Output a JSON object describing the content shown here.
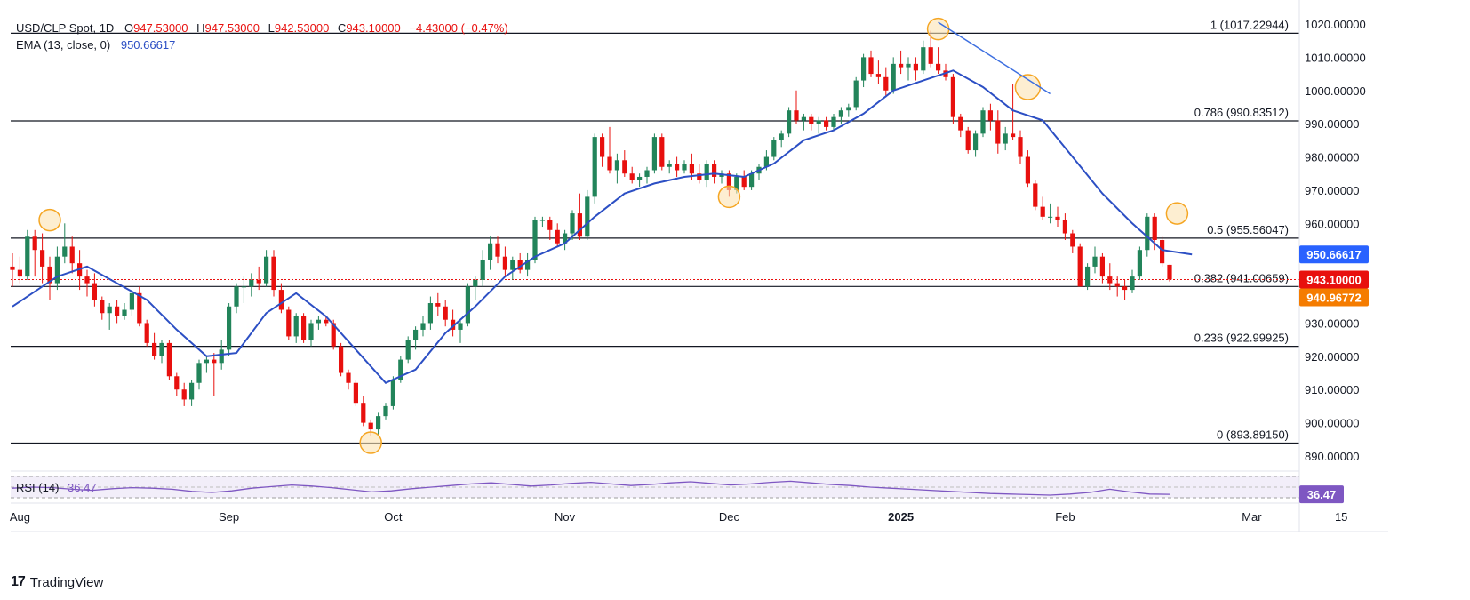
{
  "legend": {
    "symbol_line": "USD/CLP Spot, 1D",
    "o_label": "O",
    "o_value": "947.53000",
    "h_label": "H",
    "h_value": "947.53000",
    "l_label": "L",
    "l_value": "942.53000",
    "c_label": "C",
    "c_value": "943.10000",
    "change": "−4.43000 (−0.47%)",
    "ema_label": "EMA (13, close, 0)",
    "ema_value": "950.66617",
    "rsi_label": "RSI (14)",
    "rsi_value": "36.47"
  },
  "colors": {
    "up": "#22845a",
    "down": "#e8100e",
    "ema": "#2c4fc4",
    "rsi": "#7e57c2",
    "fib_line": "#131722",
    "trend": "#3d6fe0",
    "circle": "#f5a623",
    "tag_ema": "#2962ff",
    "tag_price": "#e8100e",
    "tag_fib": "#f57c00"
  },
  "brand": "TradingView",
  "chart_data": {
    "type": "candlestick",
    "title": "USD/CLP Spot, 1D",
    "ylim": [
      885,
      1025
    ],
    "y_ticks": [
      "1020.00000",
      "1010.00000",
      "1000.00000",
      "990.00000",
      "980.00000",
      "970.00000",
      "960.00000",
      "950.00000",
      "940.00000",
      "930.00000",
      "920.00000",
      "910.00000",
      "900.00000",
      "890.00000"
    ],
    "x_ticks": [
      "Aug",
      "Sep",
      "Oct",
      "Nov",
      "Dec",
      "2025",
      "Feb",
      "Mar",
      "15"
    ],
    "fib_levels": [
      {
        "label": "1 (1017.22944)",
        "value": 1017.22944
      },
      {
        "label": "0.786 (990.83512)",
        "value": 990.83512
      },
      {
        "label": "0.5 (955.56047)",
        "value": 955.56047
      },
      {
        "label": "0.382 (941.00659)",
        "value": 941.00659
      },
      {
        "label": "0.236 (922.99925)",
        "value": 922.99925
      },
      {
        "label": "0 (893.89150)",
        "value": 893.8915
      }
    ],
    "price_tags": [
      {
        "label": "950.66617",
        "value": 950.66617,
        "kind": "ema"
      },
      {
        "label": "943.10000",
        "value": 943.1,
        "kind": "price"
      },
      {
        "label": "940.96772",
        "value": 940.96772,
        "kind": "fib"
      }
    ],
    "rsi_tag": "36.47",
    "candles": [
      {
        "o": 947,
        "h": 951,
        "l": 941,
        "c": 946
      },
      {
        "o": 946,
        "h": 950,
        "l": 942,
        "c": 944
      },
      {
        "o": 944,
        "h": 958,
        "l": 943,
        "c": 956
      },
      {
        "o": 956,
        "h": 958,
        "l": 944,
        "c": 952
      },
      {
        "o": 952,
        "h": 957,
        "l": 942,
        "c": 947
      },
      {
        "o": 947,
        "h": 950,
        "l": 937,
        "c": 942
      },
      {
        "o": 942,
        "h": 953,
        "l": 940,
        "c": 950
      },
      {
        "o": 950,
        "h": 960,
        "l": 948,
        "c": 953
      },
      {
        "o": 953,
        "h": 956,
        "l": 945,
        "c": 948
      },
      {
        "o": 948,
        "h": 952,
        "l": 940,
        "c": 944
      },
      {
        "o": 944,
        "h": 946,
        "l": 938,
        "c": 942
      },
      {
        "o": 942,
        "h": 945,
        "l": 935,
        "c": 937
      },
      {
        "o": 937,
        "h": 938,
        "l": 931,
        "c": 933
      },
      {
        "o": 933,
        "h": 936,
        "l": 928,
        "c": 935
      },
      {
        "o": 935,
        "h": 937,
        "l": 930,
        "c": 932
      },
      {
        "o": 932,
        "h": 936,
        "l": 931,
        "c": 934
      },
      {
        "o": 934,
        "h": 940,
        "l": 932,
        "c": 939
      },
      {
        "o": 939,
        "h": 941,
        "l": 929,
        "c": 930
      },
      {
        "o": 930,
        "h": 931,
        "l": 923,
        "c": 924
      },
      {
        "o": 924,
        "h": 927,
        "l": 919,
        "c": 920
      },
      {
        "o": 920,
        "h": 925,
        "l": 918,
        "c": 924
      },
      {
        "o": 924,
        "h": 925,
        "l": 913,
        "c": 914
      },
      {
        "o": 914,
        "h": 915,
        "l": 908,
        "c": 910
      },
      {
        "o": 910,
        "h": 912,
        "l": 905,
        "c": 907
      },
      {
        "o": 907,
        "h": 913,
        "l": 905,
        "c": 912
      },
      {
        "o": 912,
        "h": 919,
        "l": 910,
        "c": 918
      },
      {
        "o": 918,
        "h": 920,
        "l": 915,
        "c": 919
      },
      {
        "o": 919,
        "h": 921,
        "l": 908,
        "c": 918
      },
      {
        "o": 918,
        "h": 925,
        "l": 916,
        "c": 922
      },
      {
        "o": 922,
        "h": 936,
        "l": 920,
        "c": 935
      },
      {
        "o": 935,
        "h": 942,
        "l": 933,
        "c": 941
      },
      {
        "o": 941,
        "h": 944,
        "l": 936,
        "c": 941
      },
      {
        "o": 941,
        "h": 945,
        "l": 938,
        "c": 943
      },
      {
        "o": 943,
        "h": 947,
        "l": 940,
        "c": 942
      },
      {
        "o": 942,
        "h": 952,
        "l": 941,
        "c": 950
      },
      {
        "o": 950,
        "h": 952,
        "l": 938,
        "c": 940
      },
      {
        "o": 940,
        "h": 942,
        "l": 933,
        "c": 934
      },
      {
        "o": 934,
        "h": 935,
        "l": 925,
        "c": 926
      },
      {
        "o": 926,
        "h": 933,
        "l": 924,
        "c": 932
      },
      {
        "o": 932,
        "h": 933,
        "l": 924,
        "c": 925
      },
      {
        "o": 925,
        "h": 931,
        "l": 923,
        "c": 930
      },
      {
        "o": 930,
        "h": 932,
        "l": 928,
        "c": 931
      },
      {
        "o": 931,
        "h": 932,
        "l": 929,
        "c": 930
      },
      {
        "o": 930,
        "h": 931,
        "l": 922,
        "c": 923
      },
      {
        "o": 923,
        "h": 924,
        "l": 914,
        "c": 915
      },
      {
        "o": 915,
        "h": 916,
        "l": 910,
        "c": 912
      },
      {
        "o": 912,
        "h": 913,
        "l": 905,
        "c": 906
      },
      {
        "o": 906,
        "h": 908,
        "l": 899,
        "c": 900
      },
      {
        "o": 900,
        "h": 901,
        "l": 896,
        "c": 898
      },
      {
        "o": 898,
        "h": 903,
        "l": 896,
        "c": 902
      },
      {
        "o": 902,
        "h": 906,
        "l": 901,
        "c": 905
      },
      {
        "o": 905,
        "h": 914,
        "l": 904,
        "c": 913
      },
      {
        "o": 913,
        "h": 920,
        "l": 912,
        "c": 919
      },
      {
        "o": 919,
        "h": 926,
        "l": 918,
        "c": 925
      },
      {
        "o": 925,
        "h": 929,
        "l": 922,
        "c": 928
      },
      {
        "o": 928,
        "h": 932,
        "l": 926,
        "c": 930
      },
      {
        "o": 930,
        "h": 938,
        "l": 928,
        "c": 936
      },
      {
        "o": 936,
        "h": 939,
        "l": 932,
        "c": 935
      },
      {
        "o": 935,
        "h": 937,
        "l": 929,
        "c": 931
      },
      {
        "o": 931,
        "h": 934,
        "l": 926,
        "c": 928
      },
      {
        "o": 928,
        "h": 931,
        "l": 924,
        "c": 930
      },
      {
        "o": 930,
        "h": 942,
        "l": 929,
        "c": 941
      },
      {
        "o": 941,
        "h": 944,
        "l": 937,
        "c": 943
      },
      {
        "o": 943,
        "h": 952,
        "l": 941,
        "c": 949
      },
      {
        "o": 949,
        "h": 956,
        "l": 946,
        "c": 954
      },
      {
        "o": 954,
        "h": 956,
        "l": 948,
        "c": 950
      },
      {
        "o": 950,
        "h": 953,
        "l": 944,
        "c": 946
      },
      {
        "o": 946,
        "h": 950,
        "l": 943,
        "c": 949
      },
      {
        "o": 949,
        "h": 951,
        "l": 945,
        "c": 946
      },
      {
        "o": 946,
        "h": 951,
        "l": 944,
        "c": 949
      },
      {
        "o": 949,
        "h": 962,
        "l": 948,
        "c": 961
      },
      {
        "o": 961,
        "h": 962,
        "l": 959,
        "c": 961
      },
      {
        "o": 961,
        "h": 962,
        "l": 955,
        "c": 958
      },
      {
        "o": 958,
        "h": 960,
        "l": 953,
        "c": 954
      },
      {
        "o": 954,
        "h": 958,
        "l": 952,
        "c": 957
      },
      {
        "o": 957,
        "h": 964,
        "l": 955,
        "c": 963
      },
      {
        "o": 963,
        "h": 969,
        "l": 955,
        "c": 956
      },
      {
        "o": 956,
        "h": 970,
        "l": 955,
        "c": 968
      },
      {
        "o": 968,
        "h": 987,
        "l": 966,
        "c": 986
      },
      {
        "o": 986,
        "h": 987,
        "l": 977,
        "c": 980
      },
      {
        "o": 980,
        "h": 989,
        "l": 975,
        "c": 976
      },
      {
        "o": 976,
        "h": 981,
        "l": 972,
        "c": 979
      },
      {
        "o": 979,
        "h": 982,
        "l": 974,
        "c": 975
      },
      {
        "o": 975,
        "h": 977,
        "l": 972,
        "c": 973
      },
      {
        "o": 973,
        "h": 975,
        "l": 971,
        "c": 974
      },
      {
        "o": 974,
        "h": 977,
        "l": 972,
        "c": 976
      },
      {
        "o": 976,
        "h": 987,
        "l": 975,
        "c": 986
      },
      {
        "o": 986,
        "h": 987,
        "l": 976,
        "c": 977
      },
      {
        "o": 977,
        "h": 979,
        "l": 975,
        "c": 978
      },
      {
        "o": 978,
        "h": 980,
        "l": 974,
        "c": 976
      },
      {
        "o": 976,
        "h": 979,
        "l": 975,
        "c": 978
      },
      {
        "o": 978,
        "h": 981,
        "l": 973,
        "c": 975
      },
      {
        "o": 975,
        "h": 978,
        "l": 972,
        "c": 973
      },
      {
        "o": 973,
        "h": 979,
        "l": 971,
        "c": 978
      },
      {
        "o": 978,
        "h": 979,
        "l": 972,
        "c": 974
      },
      {
        "o": 974,
        "h": 976,
        "l": 972,
        "c": 975
      },
      {
        "o": 975,
        "h": 976,
        "l": 968,
        "c": 970
      },
      {
        "o": 970,
        "h": 975,
        "l": 969,
        "c": 974
      },
      {
        "o": 974,
        "h": 976,
        "l": 970,
        "c": 971
      },
      {
        "o": 971,
        "h": 976,
        "l": 970,
        "c": 975
      },
      {
        "o": 975,
        "h": 978,
        "l": 973,
        "c": 977
      },
      {
        "o": 977,
        "h": 982,
        "l": 976,
        "c": 980
      },
      {
        "o": 980,
        "h": 986,
        "l": 979,
        "c": 985
      },
      {
        "o": 985,
        "h": 988,
        "l": 983,
        "c": 987
      },
      {
        "o": 987,
        "h": 995,
        "l": 986,
        "c": 994
      },
      {
        "o": 994,
        "h": 1000,
        "l": 990,
        "c": 991
      },
      {
        "o": 991,
        "h": 993,
        "l": 988,
        "c": 992
      },
      {
        "o": 992,
        "h": 993,
        "l": 988,
        "c": 990
      },
      {
        "o": 990,
        "h": 992,
        "l": 987,
        "c": 991
      },
      {
        "o": 991,
        "h": 992,
        "l": 988,
        "c": 989
      },
      {
        "o": 989,
        "h": 993,
        "l": 988,
        "c": 992
      },
      {
        "o": 992,
        "h": 995,
        "l": 990,
        "c": 994
      },
      {
        "o": 994,
        "h": 996,
        "l": 992,
        "c": 995
      },
      {
        "o": 995,
        "h": 1004,
        "l": 994,
        "c": 1003
      },
      {
        "o": 1003,
        "h": 1011,
        "l": 1001,
        "c": 1010
      },
      {
        "o": 1010,
        "h": 1012,
        "l": 1004,
        "c": 1005
      },
      {
        "o": 1005,
        "h": 1009,
        "l": 1002,
        "c": 1004
      },
      {
        "o": 1004,
        "h": 1007,
        "l": 998,
        "c": 1000
      },
      {
        "o": 1000,
        "h": 1010,
        "l": 999,
        "c": 1008
      },
      {
        "o": 1008,
        "h": 1012,
        "l": 1005,
        "c": 1007
      },
      {
        "o": 1007,
        "h": 1010,
        "l": 1003,
        "c": 1008
      },
      {
        "o": 1008,
        "h": 1010,
        "l": 1003,
        "c": 1006
      },
      {
        "o": 1006,
        "h": 1015,
        "l": 1005,
        "c": 1013
      },
      {
        "o": 1013,
        "h": 1018,
        "l": 1007,
        "c": 1008
      },
      {
        "o": 1008,
        "h": 1013,
        "l": 1005,
        "c": 1006
      },
      {
        "o": 1006,
        "h": 1008,
        "l": 1003,
        "c": 1004
      },
      {
        "o": 1004,
        "h": 1005,
        "l": 990,
        "c": 992
      },
      {
        "o": 992,
        "h": 993,
        "l": 986,
        "c": 988
      },
      {
        "o": 988,
        "h": 989,
        "l": 981,
        "c": 982
      },
      {
        "o": 982,
        "h": 988,
        "l": 980,
        "c": 987
      },
      {
        "o": 987,
        "h": 995,
        "l": 986,
        "c": 994
      },
      {
        "o": 994,
        "h": 996,
        "l": 988,
        "c": 991
      },
      {
        "o": 991,
        "h": 994,
        "l": 981,
        "c": 984
      },
      {
        "o": 984,
        "h": 989,
        "l": 982,
        "c": 987
      },
      {
        "o": 987,
        "h": 1002,
        "l": 985,
        "c": 986
      },
      {
        "o": 986,
        "h": 988,
        "l": 978,
        "c": 980
      },
      {
        "o": 980,
        "h": 982,
        "l": 971,
        "c": 972
      },
      {
        "o": 972,
        "h": 973,
        "l": 964,
        "c": 965
      },
      {
        "o": 965,
        "h": 968,
        "l": 961,
        "c": 962
      },
      {
        "o": 962,
        "h": 966,
        "l": 960,
        "c": 962
      },
      {
        "o": 962,
        "h": 965,
        "l": 959,
        "c": 961
      },
      {
        "o": 961,
        "h": 963,
        "l": 955,
        "c": 957
      },
      {
        "o": 957,
        "h": 958,
        "l": 951,
        "c": 953
      },
      {
        "o": 953,
        "h": 954,
        "l": 941,
        "c": 941
      },
      {
        "o": 941,
        "h": 948,
        "l": 940,
        "c": 947
      },
      {
        "o": 947,
        "h": 953,
        "l": 945,
        "c": 950
      },
      {
        "o": 950,
        "h": 951,
        "l": 942,
        "c": 944
      },
      {
        "o": 944,
        "h": 948,
        "l": 940,
        "c": 942
      },
      {
        "o": 942,
        "h": 944,
        "l": 938,
        "c": 941
      },
      {
        "o": 941,
        "h": 943,
        "l": 937,
        "c": 940
      },
      {
        "o": 940,
        "h": 946,
        "l": 939,
        "c": 944
      },
      {
        "o": 944,
        "h": 953,
        "l": 943,
        "c": 952
      },
      {
        "o": 952,
        "h": 963,
        "l": 950,
        "c": 962
      },
      {
        "o": 962,
        "h": 963,
        "l": 952,
        "c": 955
      },
      {
        "o": 955,
        "h": 956,
        "l": 947,
        "c": 948
      },
      {
        "o": 947.53,
        "h": 947.53,
        "l": 942.53,
        "c": 943.1
      }
    ],
    "ema13": [
      {
        "i": 0,
        "v": 935
      },
      {
        "i": 6,
        "v": 944
      },
      {
        "i": 10,
        "v": 947
      },
      {
        "i": 14,
        "v": 942
      },
      {
        "i": 18,
        "v": 937
      },
      {
        "i": 22,
        "v": 928
      },
      {
        "i": 26,
        "v": 920
      },
      {
        "i": 30,
        "v": 921
      },
      {
        "i": 34,
        "v": 933
      },
      {
        "i": 38,
        "v": 939
      },
      {
        "i": 42,
        "v": 932
      },
      {
        "i": 46,
        "v": 922
      },
      {
        "i": 50,
        "v": 912
      },
      {
        "i": 54,
        "v": 916
      },
      {
        "i": 58,
        "v": 927
      },
      {
        "i": 62,
        "v": 935
      },
      {
        "i": 66,
        "v": 944
      },
      {
        "i": 70,
        "v": 950
      },
      {
        "i": 74,
        "v": 954
      },
      {
        "i": 78,
        "v": 962
      },
      {
        "i": 82,
        "v": 969
      },
      {
        "i": 86,
        "v": 972
      },
      {
        "i": 90,
        "v": 974
      },
      {
        "i": 94,
        "v": 975
      },
      {
        "i": 98,
        "v": 974
      },
      {
        "i": 102,
        "v": 978
      },
      {
        "i": 106,
        "v": 985
      },
      {
        "i": 110,
        "v": 988
      },
      {
        "i": 114,
        "v": 993
      },
      {
        "i": 118,
        "v": 1000
      },
      {
        "i": 122,
        "v": 1003
      },
      {
        "i": 126,
        "v": 1006
      },
      {
        "i": 130,
        "v": 1001
      },
      {
        "i": 134,
        "v": 994
      },
      {
        "i": 138,
        "v": 991
      },
      {
        "i": 142,
        "v": 980
      },
      {
        "i": 146,
        "v": 969
      },
      {
        "i": 150,
        "v": 960
      },
      {
        "i": 154,
        "v": 952
      },
      {
        "i": 158,
        "v": 950.67
      }
    ],
    "rsi": [
      48,
      50,
      49,
      46,
      44,
      47,
      49,
      48,
      46,
      42,
      40,
      43,
      48,
      51,
      54,
      52,
      49,
      45,
      41,
      43,
      47,
      50,
      53,
      56,
      58,
      55,
      52,
      54,
      57,
      59,
      56,
      53,
      55,
      58,
      60,
      57,
      54,
      56,
      59,
      61,
      58,
      55,
      53,
      50,
      48,
      46,
      44,
      42,
      40,
      38,
      37,
      36,
      35,
      37,
      40,
      46,
      41,
      37,
      36.47
    ],
    "annotations": {
      "circles": [
        {
          "i": 5,
          "v": 961
        },
        {
          "i": 48,
          "v": 894
        },
        {
          "i": 96,
          "v": 968
        },
        {
          "i": 124,
          "v": 1018.5
        },
        {
          "i": 136,
          "v": 1001
        },
        {
          "i": 156,
          "v": 963
        }
      ],
      "trendline": [
        {
          "i": 124,
          "v": 1020.5
        },
        {
          "i": 139,
          "v": 999
        }
      ]
    }
  }
}
